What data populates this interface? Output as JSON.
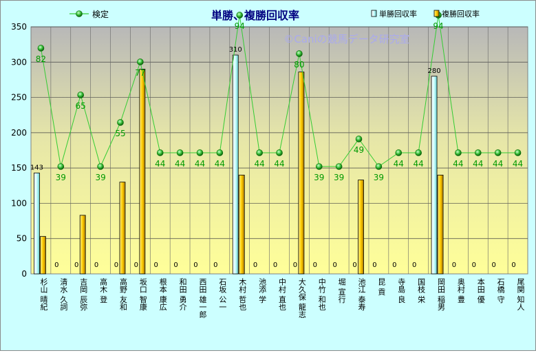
{
  "chart_data": {
    "type": "bar",
    "title": "単勝、複勝回収率",
    "watermark": "©Caniの競馬データ研究室",
    "ylim": [
      0,
      350
    ],
    "yticks": [
      0,
      50,
      100,
      150,
      200,
      250,
      300,
      350
    ],
    "grid": true,
    "legend_position": "top",
    "categories": [
      "杉山 晴紀",
      "清水 久詞",
      "吉岡 辰弥",
      "高木 登",
      "高野 友和",
      "坂口 智康",
      "根本 康広",
      "和田 勇介",
      "西田 雄一郎",
      "石坂 公一",
      "木村 哲也",
      "池添 学",
      "中村 直也",
      "大久保 龍志",
      "中竹 和也",
      "堀 宣行",
      "池江 泰寿",
      "昆 貢",
      "寺島 良",
      "国枝 栄",
      "岡田 稲男",
      "奥村 豊",
      "本田 優",
      "石橋 守",
      "尾関 知人"
    ],
    "series": [
      {
        "name": "単勝回収率",
        "type": "bar",
        "color": "#ccffff",
        "values": [
          143,
          0,
          0,
          0,
          0,
          0,
          0,
          0,
          0,
          0,
          310,
          0,
          0,
          0,
          0,
          0,
          0,
          0,
          0,
          0,
          280,
          0,
          0,
          0,
          0
        ]
      },
      {
        "name": "複勝回収率",
        "type": "bar",
        "color": "#ffcc00",
        "values": [
          53,
          0,
          83,
          0,
          130,
          290,
          0,
          0,
          0,
          0,
          140,
          0,
          0,
          286,
          0,
          0,
          133,
          0,
          0,
          0,
          140,
          0,
          0,
          0,
          0
        ]
      },
      {
        "name": "検定",
        "type": "line",
        "color": "#33cc33",
        "values": [
          82,
          39,
          65,
          39,
          55,
          77,
          44,
          44,
          44,
          44,
          94,
          44,
          44,
          80,
          39,
          39,
          49,
          39,
          44,
          44,
          94,
          44,
          44,
          44,
          44
        ]
      }
    ]
  }
}
